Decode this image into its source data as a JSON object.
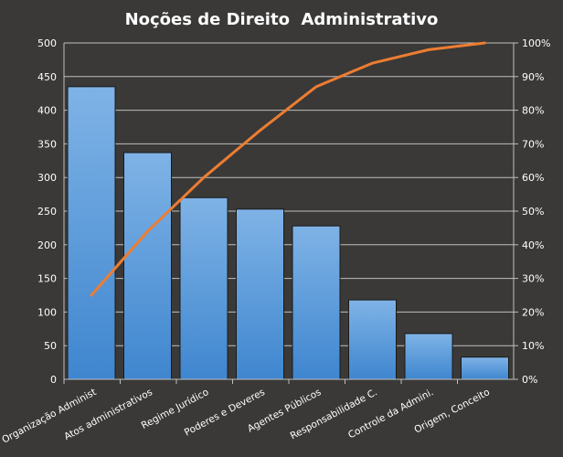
{
  "chart_data": {
    "type": "bar",
    "title": "Noções de Direito  Administrativo",
    "categories": [
      "Organização Administ",
      "Atos administrativos",
      "Regime Jurídico",
      "Poderes e Deveres",
      "Agentes Públicos",
      "Responsabilidade C.",
      "Controle da Admini.",
      "Origem, Conceito"
    ],
    "series": [
      {
        "values": [
          435,
          337,
          270,
          253,
          228,
          118,
          68,
          33
        ],
        "axis": "left"
      },
      {
        "type": "line",
        "values": [
          25,
          44,
          60,
          74,
          87,
          94,
          98,
          100
        ],
        "axis": "right",
        "unit": "%"
      }
    ],
    "ylim": [
      0,
      500
    ],
    "y_ticks": [
      "0",
      "50",
      "100",
      "150",
      "200",
      "250",
      "300",
      "350",
      "400",
      "450",
      "500"
    ],
    "y2lim": [
      0,
      100
    ],
    "y2_ticks": [
      "0%",
      "10%",
      "20%",
      "30%",
      "40%",
      "50%",
      "60%",
      "70%",
      "80%",
      "90%",
      "100%"
    ],
    "grid": true,
    "legend": "none",
    "colors": {
      "background": "#3a3937",
      "bar_top": "#7fb3e6",
      "bar_bottom": "#3f86cf",
      "bar_stroke": "#1a1a1a",
      "line": "#ed7d31",
      "grid": "#bfbfbf",
      "text": "#ffffff"
    }
  }
}
